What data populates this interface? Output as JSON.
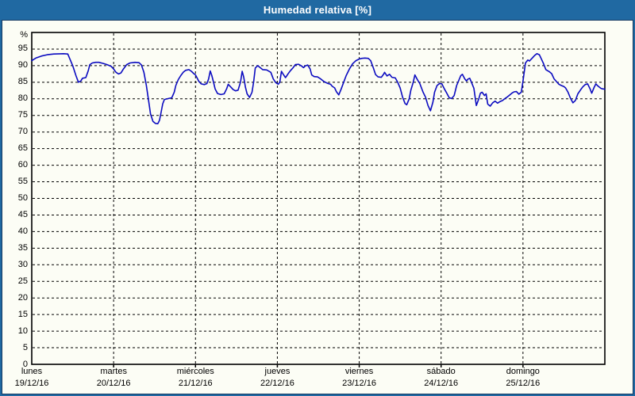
{
  "window": {
    "title": "Humedad relativa [%]"
  },
  "colors": {
    "titlebar_bg": "#2069a2",
    "title_text": "#ffffff",
    "frame_border": "#173a63",
    "chart_bg": "#fcfdf5",
    "plot_border": "#000000",
    "grid": "#000000",
    "line": "#0b0bc0",
    "label_text": "#000000"
  },
  "chart_data": {
    "type": "line",
    "title": "Humedad relativa [%]",
    "y_unit_label": "%",
    "ylim": [
      0,
      100
    ],
    "ytick_step": 5,
    "ytick_values": [
      95,
      90,
      85,
      80,
      75,
      70,
      65,
      60,
      55,
      50,
      45,
      40,
      35,
      30,
      25,
      20,
      15,
      10,
      5,
      0
    ],
    "grid": "dashed",
    "legend": "none",
    "x_days": 7,
    "x_categories": [
      {
        "day": "lunes",
        "date": "19/12/16"
      },
      {
        "day": "martes",
        "date": "20/12/16"
      },
      {
        "day": "miércoles",
        "date": "21/12/16"
      },
      {
        "day": "jueves",
        "date": "22/12/16"
      },
      {
        "day": "viernes",
        "date": "23/12/16"
      },
      {
        "day": "sábado",
        "date": "24/12/16"
      },
      {
        "day": "domingo",
        "date": "25/12/16"
      }
    ],
    "series": [
      {
        "name": "Humedad relativa",
        "color": "#0b0bc0",
        "points": [
          [
            0.0,
            91.5
          ],
          [
            0.05,
            92.3
          ],
          [
            0.12,
            92.9
          ],
          [
            0.19,
            93.3
          ],
          [
            0.27,
            93.5
          ],
          [
            0.39,
            93.6
          ],
          [
            0.44,
            93.5
          ],
          [
            0.5,
            90.0
          ],
          [
            0.54,
            87.0
          ],
          [
            0.57,
            85.0
          ],
          [
            0.6,
            85.4
          ],
          [
            0.62,
            86.2
          ],
          [
            0.66,
            86.4
          ],
          [
            0.69,
            88.5
          ],
          [
            0.71,
            90.3
          ],
          [
            0.74,
            90.8
          ],
          [
            0.78,
            91.0
          ],
          [
            0.82,
            91.0
          ],
          [
            0.87,
            90.7
          ],
          [
            0.92,
            90.3
          ],
          [
            0.97,
            89.8
          ],
          [
            1.0,
            89.0
          ],
          [
            1.03,
            88.0
          ],
          [
            1.06,
            87.5
          ],
          [
            1.09,
            87.8
          ],
          [
            1.12,
            89.0
          ],
          [
            1.16,
            90.3
          ],
          [
            1.2,
            90.8
          ],
          [
            1.26,
            91.0
          ],
          [
            1.31,
            90.9
          ],
          [
            1.34,
            90.2
          ],
          [
            1.37,
            88.0
          ],
          [
            1.4,
            84.0
          ],
          [
            1.43,
            79.0
          ],
          [
            1.45,
            75.5
          ],
          [
            1.48,
            73.2
          ],
          [
            1.51,
            72.6
          ],
          [
            1.54,
            72.5
          ],
          [
            1.56,
            73.5
          ],
          [
            1.58,
            76.0
          ],
          [
            1.6,
            78.5
          ],
          [
            1.62,
            79.8
          ],
          [
            1.67,
            80.1
          ],
          [
            1.71,
            80.3
          ],
          [
            1.74,
            82.0
          ],
          [
            1.76,
            84.0
          ],
          [
            1.79,
            85.8
          ],
          [
            1.82,
            87.0
          ],
          [
            1.85,
            88.0
          ],
          [
            1.88,
            88.6
          ],
          [
            1.92,
            88.8
          ],
          [
            1.95,
            88.3
          ],
          [
            1.98,
            87.6
          ],
          [
            2.0,
            87.2
          ],
          [
            2.02,
            86.3
          ],
          [
            2.04,
            85.3
          ],
          [
            2.07,
            84.5
          ],
          [
            2.11,
            84.3
          ],
          [
            2.14,
            84.6
          ],
          [
            2.16,
            86.0
          ],
          [
            2.18,
            88.4
          ],
          [
            2.2,
            87.0
          ],
          [
            2.22,
            85.0
          ],
          [
            2.24,
            83.0
          ],
          [
            2.27,
            81.6
          ],
          [
            2.31,
            81.3
          ],
          [
            2.35,
            81.5
          ],
          [
            2.38,
            83.0
          ],
          [
            2.4,
            84.4
          ],
          [
            2.43,
            83.6
          ],
          [
            2.46,
            82.8
          ],
          [
            2.49,
            82.4
          ],
          [
            2.52,
            82.6
          ],
          [
            2.55,
            85.0
          ],
          [
            2.57,
            88.3
          ],
          [
            2.59,
            86.5
          ],
          [
            2.61,
            83.5
          ],
          [
            2.63,
            81.5
          ],
          [
            2.66,
            80.4
          ],
          [
            2.69,
            82.0
          ],
          [
            2.71,
            85.0
          ],
          [
            2.73,
            89.3
          ],
          [
            2.76,
            90.0
          ],
          [
            2.79,
            89.4
          ],
          [
            2.82,
            88.8
          ],
          [
            2.87,
            88.7
          ],
          [
            2.92,
            88.0
          ],
          [
            2.95,
            86.0
          ],
          [
            2.98,
            84.9
          ],
          [
            3.01,
            84.4
          ],
          [
            3.03,
            85.0
          ],
          [
            3.05,
            88.3
          ],
          [
            3.07,
            87.5
          ],
          [
            3.1,
            86.4
          ],
          [
            3.13,
            87.5
          ],
          [
            3.16,
            88.5
          ],
          [
            3.19,
            89.3
          ],
          [
            3.22,
            90.3
          ],
          [
            3.26,
            90.4
          ],
          [
            3.29,
            90.0
          ],
          [
            3.32,
            89.4
          ],
          [
            3.34,
            89.9
          ],
          [
            3.37,
            90.2
          ],
          [
            3.4,
            89.0
          ],
          [
            3.42,
            87.2
          ],
          [
            3.45,
            86.7
          ],
          [
            3.49,
            86.6
          ],
          [
            3.53,
            86.0
          ],
          [
            3.57,
            85.2
          ],
          [
            3.61,
            84.7
          ],
          [
            3.65,
            84.4
          ],
          [
            3.67,
            83.8
          ],
          [
            3.7,
            83.3
          ],
          [
            3.72,
            82.2
          ],
          [
            3.75,
            81.2
          ],
          [
            3.78,
            83.0
          ],
          [
            3.81,
            85.0
          ],
          [
            3.84,
            87.0
          ],
          [
            3.88,
            89.0
          ],
          [
            3.92,
            90.6
          ],
          [
            3.96,
            91.5
          ],
          [
            4.0,
            92.0
          ],
          [
            4.03,
            92.2
          ],
          [
            4.07,
            92.3
          ],
          [
            4.11,
            92.2
          ],
          [
            4.14,
            91.5
          ],
          [
            4.17,
            89.5
          ],
          [
            4.2,
            87.3
          ],
          [
            4.23,
            86.6
          ],
          [
            4.27,
            86.5
          ],
          [
            4.3,
            87.5
          ],
          [
            4.31,
            88.0
          ],
          [
            4.34,
            86.9
          ],
          [
            4.37,
            87.4
          ],
          [
            4.4,
            86.5
          ],
          [
            4.44,
            86.3
          ],
          [
            4.47,
            85.0
          ],
          [
            4.5,
            83.3
          ],
          [
            4.53,
            80.5
          ],
          [
            4.56,
            78.6
          ],
          [
            4.58,
            78.2
          ],
          [
            4.61,
            80.0
          ],
          [
            4.63,
            82.6
          ],
          [
            4.66,
            85.0
          ],
          [
            4.68,
            87.2
          ],
          [
            4.71,
            85.8
          ],
          [
            4.74,
            84.6
          ],
          [
            4.78,
            82.0
          ],
          [
            4.81,
            80.5
          ],
          [
            4.84,
            78.0
          ],
          [
            4.87,
            76.4
          ],
          [
            4.9,
            79.0
          ],
          [
            4.92,
            82.0
          ],
          [
            4.95,
            84.0
          ],
          [
            4.98,
            84.6
          ],
          [
            5.01,
            84.5
          ],
          [
            5.04,
            83.0
          ],
          [
            5.07,
            81.7
          ],
          [
            5.1,
            80.3
          ],
          [
            5.13,
            80.1
          ],
          [
            5.16,
            81.0
          ],
          [
            5.19,
            84.0
          ],
          [
            5.22,
            85.8
          ],
          [
            5.24,
            87.0
          ],
          [
            5.26,
            87.4
          ],
          [
            5.29,
            86.0
          ],
          [
            5.31,
            85.4
          ],
          [
            5.33,
            86.0
          ],
          [
            5.35,
            86.2
          ],
          [
            5.37,
            85.0
          ],
          [
            5.4,
            83.2
          ],
          [
            5.43,
            78.0
          ],
          [
            5.46,
            80.0
          ],
          [
            5.48,
            81.7
          ],
          [
            5.5,
            82.0
          ],
          [
            5.53,
            81.0
          ],
          [
            5.55,
            81.5
          ],
          [
            5.57,
            78.4
          ],
          [
            5.6,
            77.8
          ],
          [
            5.63,
            78.8
          ],
          [
            5.66,
            79.3
          ],
          [
            5.69,
            78.7
          ],
          [
            5.72,
            79.2
          ],
          [
            5.75,
            79.5
          ],
          [
            5.78,
            80.1
          ],
          [
            5.81,
            80.6
          ],
          [
            5.84,
            81.2
          ],
          [
            5.87,
            81.8
          ],
          [
            5.89,
            82.1
          ],
          [
            5.92,
            82.2
          ],
          [
            5.95,
            81.4
          ],
          [
            5.98,
            82.0
          ],
          [
            6.0,
            85.4
          ],
          [
            6.03,
            90.8
          ],
          [
            6.06,
            91.7
          ],
          [
            6.08,
            91.4
          ],
          [
            6.11,
            92.2
          ],
          [
            6.14,
            93.0
          ],
          [
            6.17,
            93.6
          ],
          [
            6.2,
            93.3
          ],
          [
            6.22,
            92.3
          ],
          [
            6.25,
            90.7
          ],
          [
            6.28,
            88.8
          ],
          [
            6.32,
            88.2
          ],
          [
            6.35,
            87.6
          ],
          [
            6.38,
            86.0
          ],
          [
            6.41,
            85.2
          ],
          [
            6.44,
            84.4
          ],
          [
            6.47,
            84.0
          ],
          [
            6.5,
            83.7
          ],
          [
            6.52,
            83.3
          ],
          [
            6.55,
            82.0
          ],
          [
            6.58,
            80.2
          ],
          [
            6.61,
            78.8
          ],
          [
            6.64,
            79.5
          ],
          [
            6.67,
            81.5
          ],
          [
            6.7,
            82.6
          ],
          [
            6.73,
            83.6
          ],
          [
            6.76,
            84.3
          ],
          [
            6.79,
            84.5
          ],
          [
            6.82,
            83.0
          ],
          [
            6.84,
            81.7
          ],
          [
            6.87,
            83.5
          ],
          [
            6.89,
            84.5
          ],
          [
            6.92,
            83.8
          ],
          [
            6.95,
            83.2
          ],
          [
            6.97,
            83.0
          ],
          [
            7.0,
            82.9
          ]
        ]
      }
    ]
  }
}
